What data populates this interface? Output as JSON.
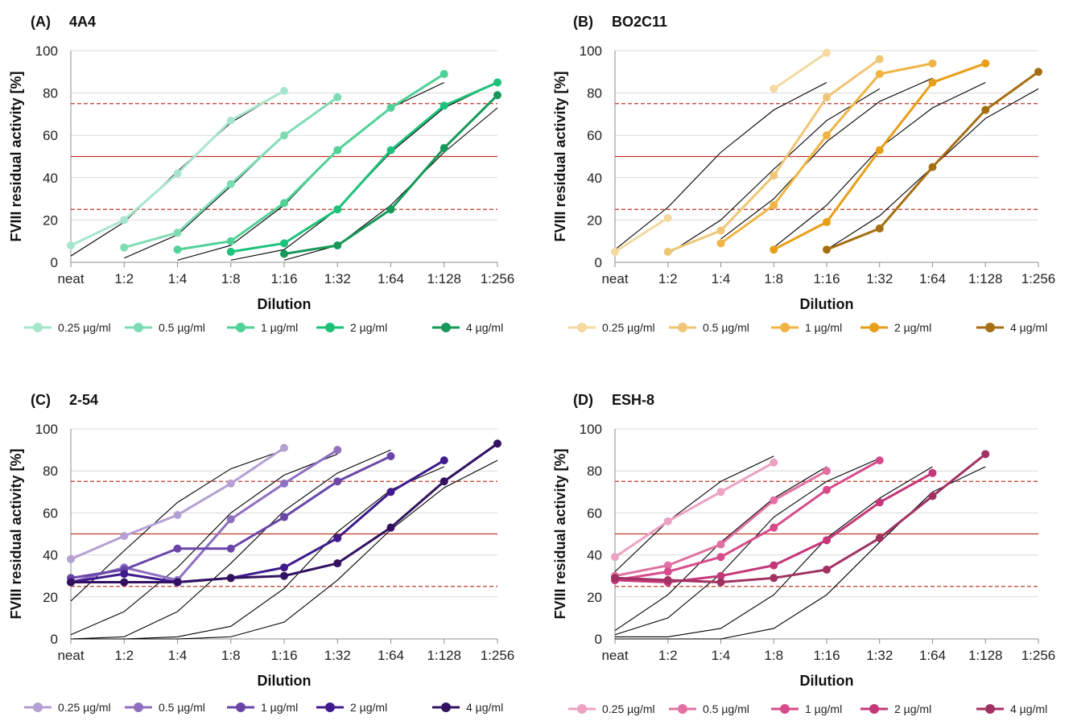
{
  "x_categories": [
    "neat",
    "1:2",
    "1:4",
    "1:8",
    "1:16",
    "1:32",
    "1:64",
    "1:128",
    "1:256"
  ],
  "y_ticks": [
    0,
    20,
    40,
    60,
    80,
    100
  ],
  "ylabel": "FVIII residual activity [%]",
  "xlabel": "Dilution",
  "reference_lines": [
    25,
    50,
    75
  ],
  "colors": {
    "A": [
      "#a8e6cc",
      "#7edcb4",
      "#4fd197",
      "#1cc17a",
      "#179858"
    ],
    "B": [
      "#f4d9a0",
      "#efc675",
      "#f0b444",
      "#e99e17",
      "#a66e12"
    ],
    "C": [
      "#b4a0d2",
      "#8e6fc0",
      "#6a45a8",
      "#3f1a8c",
      "#321260"
    ],
    "D": [
      "#eba2c3",
      "#e070a2",
      "#d64b8b",
      "#c4377a",
      "#a03263"
    ]
  },
  "chart_data": [
    {
      "panel": "A",
      "type": "line",
      "label": "(A)",
      "title": "4A4",
      "xlabel": "Dilution",
      "ylabel": "FVIII residual activity [%]",
      "ylim": [
        0,
        100
      ],
      "categories": [
        "neat",
        "1:2",
        "1:4",
        "1:8",
        "1:16",
        "1:32",
        "1:64",
        "1:128",
        "1:256"
      ],
      "series": [
        {
          "name": "0.25 µg/ml",
          "values": [
            8,
            20,
            42,
            67,
            81,
            null,
            null,
            null,
            null
          ]
        },
        {
          "name": "0.5 µg/ml",
          "values": [
            null,
            7,
            14,
            37,
            60,
            78,
            null,
            null,
            null
          ]
        },
        {
          "name": "1 µg/ml",
          "values": [
            null,
            null,
            6,
            10,
            28,
            53,
            73,
            89,
            null
          ]
        },
        {
          "name": "2 µg/ml",
          "values": [
            null,
            null,
            null,
            5,
            9,
            25,
            53,
            74,
            85
          ]
        },
        {
          "name": "4 µg/ml",
          "values": [
            null,
            null,
            null,
            null,
            4,
            8,
            25,
            54,
            79
          ]
        }
      ],
      "fits": [
        [
          0,
          3,
          1,
          19,
          2,
          43,
          3,
          66,
          4,
          81
        ],
        [
          1,
          2,
          2,
          13,
          3,
          36,
          4,
          60,
          5,
          78
        ],
        [
          2,
          1,
          3,
          8,
          4,
          27,
          5,
          53,
          6,
          73,
          7,
          85
        ],
        [
          3,
          1,
          4,
          6,
          5,
          25,
          6,
          52,
          7,
          73,
          8,
          85
        ],
        [
          4,
          1,
          5,
          8,
          6,
          27,
          7,
          52,
          8,
          73
        ]
      ],
      "legend": [
        "0.25 µg/ml",
        "0.5 µg/ml",
        "1 µg/ml",
        "2 µg/ml",
        "4 µg/ml"
      ]
    },
    {
      "panel": "B",
      "type": "line",
      "label": "(B)",
      "title": "BO2C11",
      "xlabel": "Dilution",
      "ylabel": "FVIII residual activity [%]",
      "ylim": [
        0,
        100
      ],
      "categories": [
        "neat",
        "1:2",
        "1:4",
        "1:8",
        "1:16",
        "1:32",
        "1:64",
        "1:128",
        "1:256"
      ],
      "series": [
        {
          "name": "0.25 µg/ml",
          "values": [
            5,
            21,
            null,
            82,
            99,
            null,
            null,
            null,
            null
          ]
        },
        {
          "name": "0.5 µg/ml",
          "values": [
            null,
            5,
            15,
            41,
            78,
            96,
            null,
            null,
            null
          ]
        },
        {
          "name": "1 µg/ml",
          "values": [
            null,
            null,
            9,
            27,
            60,
            89,
            94,
            null,
            null
          ]
        },
        {
          "name": "2 µg/ml",
          "values": [
            null,
            null,
            null,
            6,
            19,
            53,
            85,
            94,
            null
          ]
        },
        {
          "name": "4 µg/ml",
          "values": [
            null,
            null,
            null,
            null,
            6,
            16,
            45,
            72,
            90
          ]
        }
      ],
      "fits": [
        [
          0,
          6,
          1,
          26,
          2,
          52,
          3,
          72,
          4,
          85
        ],
        [
          1,
          4,
          2,
          20,
          3,
          44,
          4,
          67,
          5,
          82
        ],
        [
          2,
          11,
          3,
          30,
          4,
          57,
          5,
          76,
          6,
          87
        ],
        [
          3,
          7,
          4,
          27,
          5,
          54,
          6,
          73,
          7,
          85
        ],
        [
          4,
          6,
          5,
          22,
          6,
          45,
          7,
          68,
          8,
          82
        ]
      ],
      "legend": [
        "0.25 µg/ml",
        "0.5 µg/ml",
        "1 µg/ml",
        "2 µg/ml",
        "4 µg/ml"
      ]
    },
    {
      "panel": "C",
      "type": "line",
      "label": "(C)",
      "title": "2-54",
      "xlabel": "Dilution",
      "ylabel": "FVIII residual activity [%]",
      "ylim": [
        0,
        100
      ],
      "categories": [
        "neat",
        "1:2",
        "1:4",
        "1:8",
        "1:16",
        "1:32",
        "1:64",
        "1:128",
        "1:256"
      ],
      "series": [
        {
          "name": "0.25 µg/ml",
          "values": [
            38,
            49,
            59,
            74,
            91,
            null,
            null,
            null,
            null
          ]
        },
        {
          "name": "0.5 µg/ml",
          "values": [
            27,
            34,
            28,
            57,
            74,
            90,
            null,
            null,
            null
          ]
        },
        {
          "name": "1 µg/ml",
          "values": [
            29,
            33,
            43,
            43,
            58,
            75,
            87,
            null,
            null
          ]
        },
        {
          "name": "2 µg/ml",
          "values": [
            27,
            31,
            27,
            29,
            34,
            48,
            70,
            85,
            null
          ]
        },
        {
          "name": "4 µg/ml",
          "values": [
            27,
            27,
            27,
            29,
            30,
            36,
            53,
            75,
            93
          ]
        }
      ],
      "fits": [
        [
          0,
          18,
          1,
          42,
          2,
          65,
          3,
          81,
          4,
          90
        ],
        [
          0,
          2,
          1,
          13,
          2,
          34,
          3,
          60,
          4,
          78,
          5,
          88
        ],
        [
          0,
          0,
          1,
          1,
          2,
          13,
          3,
          36,
          4,
          61,
          5,
          79,
          6,
          90
        ],
        [
          0,
          0,
          1,
          0,
          2,
          1,
          3,
          6,
          4,
          24,
          5,
          51,
          6,
          71,
          7,
          82
        ],
        [
          0,
          0,
          1,
          0,
          2,
          0,
          3,
          1,
          4,
          8,
          5,
          28,
          6,
          52,
          7,
          72,
          8,
          85
        ]
      ],
      "legend": [
        "0.25 µg/ml",
        "0.5 µg/ml",
        "1 µg/ml",
        "2 µg/ml",
        "4 µg/ml"
      ]
    },
    {
      "panel": "D",
      "type": "line",
      "label": "(D)",
      "title": "ESH-8",
      "xlabel": "Dilution",
      "ylabel": "FVIII residual activity [%]",
      "ylim": [
        0,
        100
      ],
      "categories": [
        "neat",
        "1:2",
        "1:4",
        "1:8",
        "1:16",
        "1:32",
        "1:64",
        "1:128",
        "1:256"
      ],
      "series": [
        {
          "name": "0.25 µg/ml",
          "values": [
            39,
            56,
            70,
            84,
            null,
            null,
            null,
            null,
            null
          ]
        },
        {
          "name": "0.5 µg/ml",
          "values": [
            30,
            35,
            45,
            66,
            80,
            null,
            null,
            null,
            null
          ]
        },
        {
          "name": "1 µg/ml",
          "values": [
            28,
            32,
            39,
            53,
            71,
            85,
            null,
            null,
            null
          ]
        },
        {
          "name": "2 µg/ml",
          "values": [
            28,
            27,
            30,
            35,
            47,
            65,
            79,
            null,
            null
          ]
        },
        {
          "name": "4 µg/ml",
          "values": [
            29,
            28,
            27,
            29,
            33,
            48,
            68,
            88,
            null
          ]
        }
      ],
      "fits": [
        [
          0,
          32,
          1,
          56,
          2,
          75,
          3,
          87
        ],
        [
          0,
          4,
          1,
          21,
          2,
          46,
          3,
          67,
          4,
          82
        ],
        [
          0,
          2,
          1,
          10,
          2,
          31,
          3,
          58,
          4,
          75,
          5,
          86
        ],
        [
          0,
          1,
          1,
          1,
          2,
          5,
          3,
          21,
          4,
          48,
          5,
          67,
          6,
          82
        ],
        [
          0,
          0,
          1,
          0,
          2,
          0,
          3,
          5,
          4,
          21,
          5,
          46,
          6,
          70,
          7,
          82
        ]
      ],
      "legend": [
        "0.25 µg/ml",
        "0.5 µg/ml",
        "1 µg/ml",
        "2 µg/ml",
        "4 µg/ml"
      ]
    }
  ]
}
